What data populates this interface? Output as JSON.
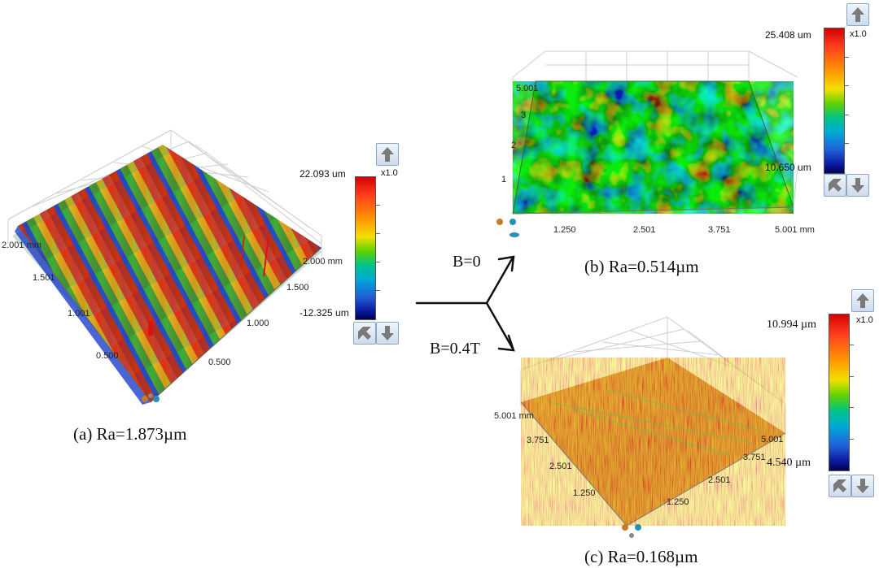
{
  "panels": {
    "a": {
      "caption": "(a) Ra=1.873µm",
      "colorbar": {
        "max_label": "22.093 um",
        "min_label": "-12.325 um",
        "scale_label": "x1.0"
      },
      "axis_ticks": {
        "left_axis": [
          "2.001 mm",
          "1.501",
          "1.001",
          "0.500"
        ],
        "right_axis": [
          "2.000 mm",
          "1.500",
          "1.000",
          "0.500"
        ]
      }
    },
    "b": {
      "caption": "(b) Ra=0.514µm",
      "colorbar": {
        "max_label": "25.408 um",
        "min_label": "10.650 um",
        "scale_label": "x1.0"
      },
      "axis_ticks": {
        "vertical_axis": [
          "5.001",
          "3",
          "2",
          "1"
        ],
        "bottom_axis": [
          "1.250",
          "2.501",
          "3.751",
          "5.001 mm"
        ]
      }
    },
    "c": {
      "caption": "(c) Ra=0.168µm",
      "colorbar": {
        "max_label": "10.994 µm",
        "min_label": "4.540 µm",
        "scale_label": "x1.0"
      },
      "axis_ticks": {
        "left_axis": [
          "5.001 mm",
          "3.751",
          "2.501",
          "1.250"
        ],
        "right_axis": [
          "5.001",
          "3.751",
          "2.501",
          "1.250"
        ]
      }
    }
  },
  "branches": {
    "upper": "B=0",
    "lower": "B=0.4T"
  },
  "icons": [
    "arrow-up-icon",
    "arrow-down-icon",
    "rotate-view-icon"
  ]
}
